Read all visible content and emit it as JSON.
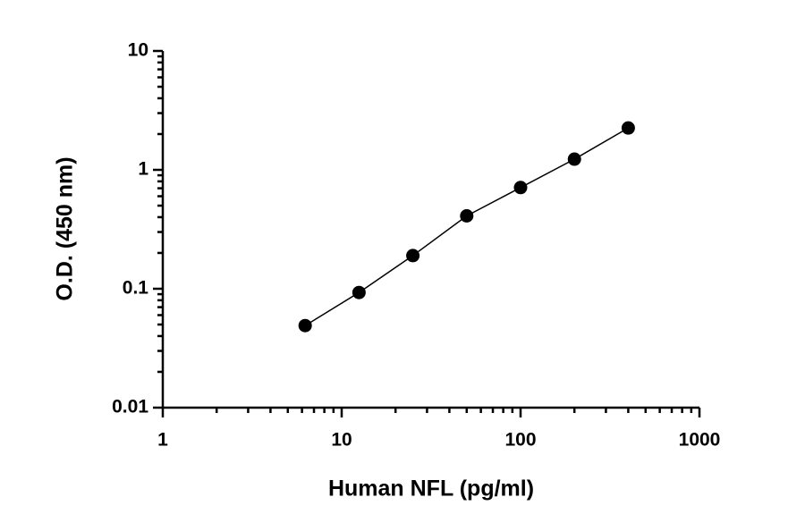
{
  "chart_data": {
    "type": "scatter",
    "x_label": "Human NFL (pg/ml)",
    "y_label": "O.D. (450 nm)",
    "x": [
      6.25,
      12.5,
      25,
      50,
      100,
      200,
      400
    ],
    "values": [
      0.049,
      0.093,
      0.19,
      0.41,
      0.71,
      1.23,
      2.25
    ],
    "color": "#000000",
    "connect": true,
    "xscale": "log",
    "yscale": "log",
    "xlim": [
      1,
      1000
    ],
    "ylim": [
      0.01,
      10
    ],
    "xticks": [
      1,
      10,
      100,
      1000
    ],
    "yticks": [
      0.01,
      0.1,
      1,
      10
    ],
    "xminorticks": [
      2,
      3,
      4,
      5,
      6,
      7,
      8,
      9,
      20,
      30,
      40,
      50,
      60,
      70,
      80,
      90,
      200,
      300,
      400,
      500,
      600,
      700,
      800,
      900
    ],
    "yminorticks": [
      0.02,
      0.03,
      0.04,
      0.05,
      0.06,
      0.07,
      0.08,
      0.09,
      0.2,
      0.3,
      0.4,
      0.5,
      0.6,
      0.7,
      0.8,
      0.9,
      2,
      3,
      4,
      5,
      6,
      7,
      8,
      9
    ]
  }
}
